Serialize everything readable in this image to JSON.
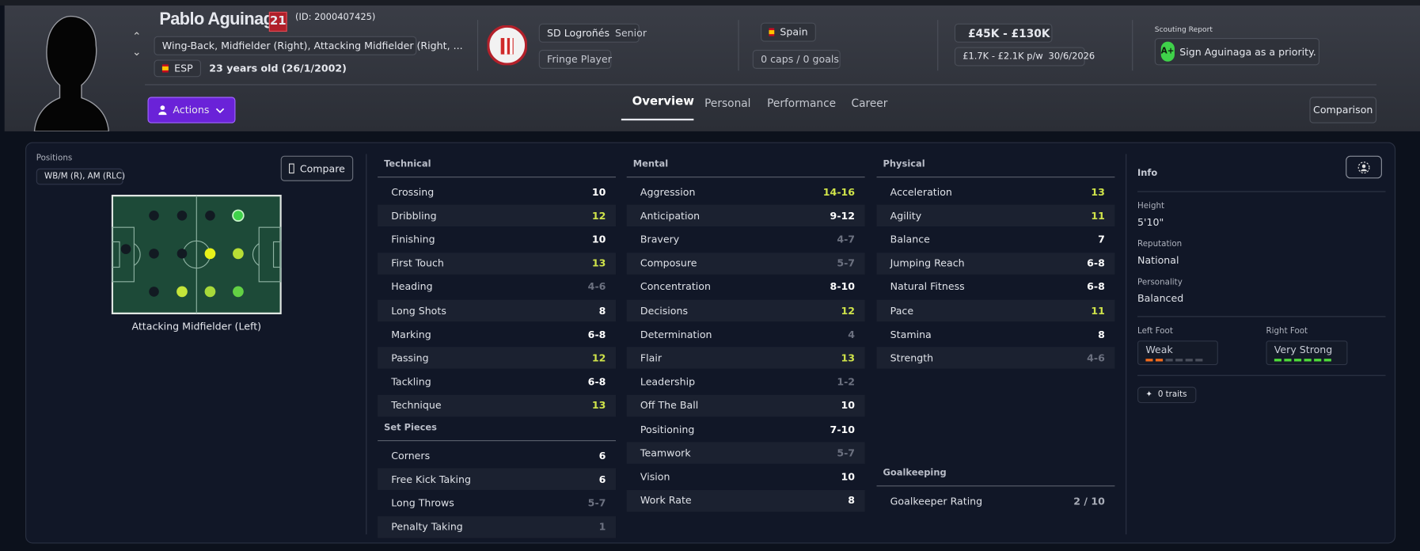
{
  "header": {
    "name": "Pablo Aguinaga",
    "squad_number": "21",
    "id_text": "(ID: 2000407425)",
    "positions_text": "Wing-Back, Midfielder (Right), Attacking Midfielder (Right, ...",
    "nationality_code": "ESP",
    "age_text": "23 years old (26/1/2002)",
    "club": "SD Logroñés",
    "club_status": "Senior",
    "squad_role": "Fringe Player",
    "nation": "Spain",
    "caps_text": "0 caps / 0 goals",
    "value_range": "£45K - £130K",
    "wage": "£1.7K - £2.1K p/w",
    "contract_expiry": "30/6/2026",
    "scouting_label": "Scouting Report",
    "scouting_grade": "A+",
    "scouting_text": "Sign Aguinaga as a priority."
  },
  "navigation": {
    "actions": "Actions",
    "tabs": [
      "Overview",
      "Personal",
      "Performance",
      "Career"
    ],
    "active_tab": 0,
    "comparison": "Comparison"
  },
  "positions": {
    "label": "Positions",
    "summary": "WB/M (R), AM (RLC)",
    "compare": "Compare",
    "selected": "Attacking Midfielder (Left)"
  },
  "attributes": [
    {
      "title": "Technical",
      "rows": [
        {
          "name": "Crossing",
          "value": "10",
          "color": "#ffffff"
        },
        {
          "name": "Dribbling",
          "value": "12",
          "color": "#cfe34a"
        },
        {
          "name": "Finishing",
          "value": "10",
          "color": "#ffffff"
        },
        {
          "name": "First Touch",
          "value": "13",
          "color": "#cfe34a"
        },
        {
          "name": "Heading",
          "value": "4-6",
          "color": "#6c7180"
        },
        {
          "name": "Long Shots",
          "value": "8",
          "color": "#ffffff"
        },
        {
          "name": "Marking",
          "value": "6-8",
          "color": "#ffffff"
        },
        {
          "name": "Passing",
          "value": "12",
          "color": "#cfe34a"
        },
        {
          "name": "Tackling",
          "value": "6-8",
          "color": "#ffffff"
        },
        {
          "name": "Technique",
          "value": "13",
          "color": "#cfe34a"
        }
      ]
    },
    {
      "title": "Set Pieces",
      "rows": [
        {
          "name": "Corners",
          "value": "6",
          "color": "#ffffff"
        },
        {
          "name": "Free Kick Taking",
          "value": "6",
          "color": "#ffffff"
        },
        {
          "name": "Long Throws",
          "value": "5-7",
          "color": "#6c7180"
        },
        {
          "name": "Penalty Taking",
          "value": "1",
          "color": "#6c7180"
        }
      ]
    },
    {
      "title": "Mental",
      "rows": [
        {
          "name": "Aggression",
          "value": "14-16",
          "color": "#cfe34a"
        },
        {
          "name": "Anticipation",
          "value": "9-12",
          "color": "#ffffff"
        },
        {
          "name": "Bravery",
          "value": "4-7",
          "color": "#6c7180"
        },
        {
          "name": "Composure",
          "value": "5-7",
          "color": "#6c7180"
        },
        {
          "name": "Concentration",
          "value": "8-10",
          "color": "#ffffff"
        },
        {
          "name": "Decisions",
          "value": "12",
          "color": "#cfe34a"
        },
        {
          "name": "Determination",
          "value": "4",
          "color": "#6c7180"
        },
        {
          "name": "Flair",
          "value": "13",
          "color": "#cfe34a"
        },
        {
          "name": "Leadership",
          "value": "1-2",
          "color": "#6c7180"
        },
        {
          "name": "Off The Ball",
          "value": "10",
          "color": "#ffffff"
        },
        {
          "name": "Positioning",
          "value": "7-10",
          "color": "#ffffff"
        },
        {
          "name": "Teamwork",
          "value": "5-7",
          "color": "#6c7180"
        },
        {
          "name": "Vision",
          "value": "10",
          "color": "#ffffff"
        },
        {
          "name": "Work Rate",
          "value": "8",
          "color": "#ffffff"
        }
      ]
    },
    {
      "title": "Physical",
      "rows": [
        {
          "name": "Acceleration",
          "value": "13",
          "color": "#cfe34a"
        },
        {
          "name": "Agility",
          "value": "11",
          "color": "#cfe34a"
        },
        {
          "name": "Balance",
          "value": "7",
          "color": "#ffffff"
        },
        {
          "name": "Jumping Reach",
          "value": "6-8",
          "color": "#ffffff"
        },
        {
          "name": "Natural Fitness",
          "value": "6-8",
          "color": "#ffffff"
        },
        {
          "name": "Pace",
          "value": "11",
          "color": "#cfe34a"
        },
        {
          "name": "Stamina",
          "value": "8",
          "color": "#ffffff"
        },
        {
          "name": "Strength",
          "value": "4-6",
          "color": "#6c7180"
        }
      ]
    },
    {
      "title": "Goalkeeping",
      "rows": [
        {
          "name": "Goalkeeper Rating",
          "value": "2 / 10",
          "color": "#a9adb8"
        }
      ]
    }
  ],
  "info": {
    "title": "Info",
    "fields": [
      {
        "label": "Height",
        "value": "5'10\""
      },
      {
        "label": "Reputation",
        "value": "National"
      },
      {
        "label": "Personality",
        "value": "Balanced"
      }
    ],
    "left_foot": {
      "label": "Left Foot",
      "value": "Weak"
    },
    "right_foot": {
      "label": "Right Foot",
      "value": "Very Strong"
    },
    "traits": "0 traits"
  }
}
